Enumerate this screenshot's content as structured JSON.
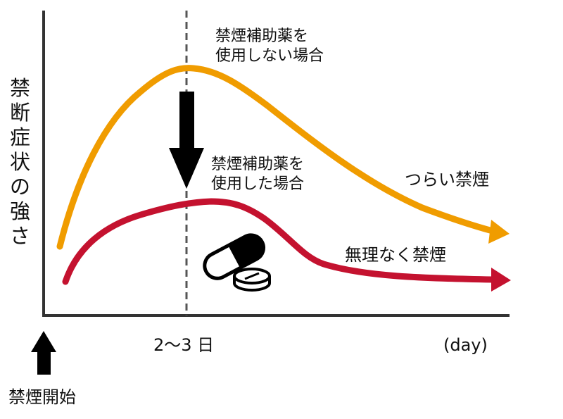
{
  "y_axis_label": [
    "禁",
    "断",
    "症",
    "状",
    "の",
    "強",
    "さ"
  ],
  "annotations": {
    "without_aid_line1": "禁煙補助薬を",
    "without_aid_line2": "使用しない場合",
    "with_aid_line1": "禁煙補助薬を",
    "with_aid_line2": "使用した場合",
    "hard_quit": "つらい禁煙",
    "easy_quit": "無理なく禁煙"
  },
  "x_axis": {
    "tick_label": "2〜3 日",
    "unit_label": "(day)",
    "start_label": "禁煙開始"
  },
  "colors": {
    "without_aid": "#f09c00",
    "with_aid": "#c4122f",
    "axis": "#333333"
  },
  "icons": [
    "down-arrow-icon",
    "up-arrow-icon",
    "capsule-pill-icon",
    "tablet-pill-icon"
  ]
}
